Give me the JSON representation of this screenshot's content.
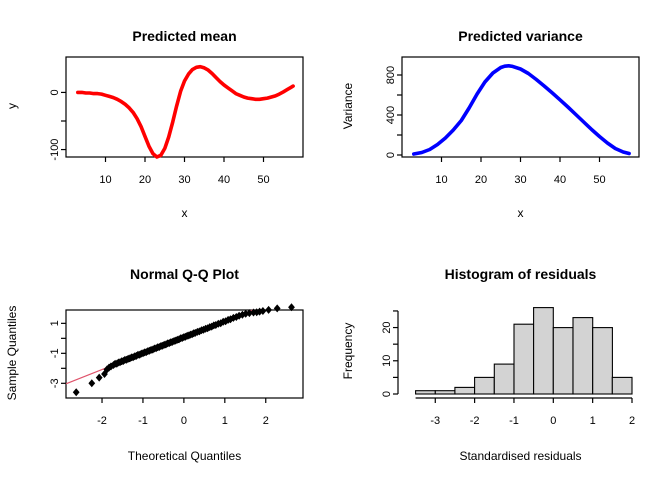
{
  "figure": {
    "background": "#ffffff",
    "text_color": "#000000",
    "axis_color": "#000000"
  },
  "chart_data": [
    {
      "type": "line",
      "name": "mean-curve",
      "title": "Predicted mean",
      "xlabel": "x",
      "ylabel": "y",
      "color": "#ff0000",
      "xlim": [
        0,
        60
      ],
      "ylim": [
        -113,
        62
      ],
      "grid": false,
      "xticks": [
        {
          "v": 10,
          "label": "10"
        },
        {
          "v": 20,
          "label": "20"
        },
        {
          "v": 30,
          "label": "30"
        },
        {
          "v": 40,
          "label": "40"
        },
        {
          "v": 50,
          "label": "50"
        }
      ],
      "yticks": [
        {
          "v": 0,
          "label": "0"
        },
        {
          "v": -50,
          "label": ""
        },
        {
          "v": -100,
          "label": "-100"
        }
      ],
      "x": [
        3,
        4,
        5,
        6,
        7,
        8,
        9,
        10,
        11,
        12,
        13,
        14,
        15,
        16,
        17,
        18,
        19,
        20,
        21,
        22,
        23,
        24,
        25,
        26,
        27,
        28,
        29,
        30,
        31,
        32,
        33,
        34,
        35,
        36,
        37,
        38,
        39,
        40,
        41,
        42,
        43,
        44,
        45,
        46,
        47,
        48,
        49,
        50,
        51,
        52,
        53,
        54,
        55,
        56,
        57,
        57.5
      ],
      "y": [
        0,
        0,
        -1,
        -1,
        -2,
        -2,
        -3,
        -5,
        -7,
        -9,
        -12,
        -16,
        -21,
        -27,
        -35,
        -46,
        -60,
        -77,
        -94,
        -107,
        -113,
        -110,
        -98,
        -78,
        -52,
        -24,
        2,
        20,
        32,
        40,
        44,
        45,
        43,
        39,
        33,
        26,
        19,
        13,
        8,
        3,
        -2,
        -5,
        -8,
        -10,
        -11,
        -12,
        -12,
        -11,
        -10,
        -8,
        -6,
        -3,
        1,
        5,
        9,
        11
      ]
    },
    {
      "type": "line",
      "name": "variance-curve",
      "title": "Predicted variance",
      "xlabel": "x",
      "ylabel": "Variance",
      "color": "#0000ff",
      "xlim": [
        0,
        60
      ],
      "ylim": [
        -20,
        980
      ],
      "grid": false,
      "xticks": [
        {
          "v": 10,
          "label": "10"
        },
        {
          "v": 20,
          "label": "20"
        },
        {
          "v": 30,
          "label": "30"
        },
        {
          "v": 40,
          "label": "40"
        },
        {
          "v": 50,
          "label": "50"
        }
      ],
      "yticks": [
        {
          "v": 0,
          "label": "0"
        },
        {
          "v": 200,
          "label": ""
        },
        {
          "v": 400,
          "label": "400"
        },
        {
          "v": 600,
          "label": ""
        },
        {
          "v": 800,
          "label": "800"
        }
      ],
      "x": [
        3,
        5,
        7,
        9,
        11,
        13,
        15,
        17,
        19,
        21,
        23,
        25,
        26,
        27,
        28,
        30,
        32,
        34,
        36,
        38,
        40,
        42,
        44,
        46,
        48,
        50,
        52,
        54,
        56,
        57.5
      ],
      "y": [
        10,
        25,
        55,
        105,
        170,
        250,
        345,
        470,
        610,
        730,
        820,
        875,
        888,
        892,
        886,
        860,
        815,
        755,
        690,
        622,
        552,
        480,
        405,
        330,
        255,
        185,
        120,
        65,
        30,
        15
      ]
    },
    {
      "type": "scatter",
      "name": "qq-points",
      "title": "Normal Q-Q Plot",
      "xlabel": "Theoretical Quantiles",
      "ylabel": "Sample Quantiles",
      "point_color": "#000000",
      "point_shape": "diamond",
      "ref_line": {
        "intercept": 0.08,
        "slope": 1.08,
        "color": "#df536b"
      },
      "xlim": [
        -2.88,
        2.91
      ],
      "ylim": [
        -3.98,
        1.89
      ],
      "grid": false,
      "xticks": [
        {
          "v": -2,
          "label": "-2"
        },
        {
          "v": -1,
          "label": "-1"
        },
        {
          "v": 0,
          "label": "0"
        },
        {
          "v": 1,
          "label": "1"
        },
        {
          "v": 2,
          "label": "2"
        }
      ],
      "yticks": [
        {
          "v": 1,
          "label": "1"
        },
        {
          "v": 0,
          "label": ""
        },
        {
          "v": -1,
          "label": "-1"
        },
        {
          "v": -2,
          "label": ""
        },
        {
          "v": -3,
          "label": "-3"
        }
      ],
      "points": [
        [
          -2.63,
          -3.6
        ],
        [
          -2.25,
          -3.0
        ],
        [
          -2.07,
          -2.62
        ],
        [
          -1.94,
          -2.38
        ],
        [
          -1.88,
          -2.08
        ],
        [
          -1.83,
          -1.95
        ],
        [
          -1.78,
          -1.87
        ],
        [
          -1.72,
          -1.78
        ],
        [
          -1.68,
          -1.7
        ],
        [
          -1.64,
          -1.69
        ],
        [
          -1.6,
          -1.61
        ],
        [
          -1.56,
          -1.6
        ],
        [
          -1.52,
          -1.53
        ],
        [
          -1.48,
          -1.51
        ],
        [
          -1.44,
          -1.44
        ],
        [
          -1.4,
          -1.43
        ],
        [
          -1.36,
          -1.36
        ],
        [
          -1.32,
          -1.34
        ],
        [
          -1.28,
          -1.27
        ],
        [
          -1.24,
          -1.26
        ],
        [
          -1.2,
          -1.19
        ],
        [
          -1.16,
          -1.17
        ],
        [
          -1.12,
          -1.1
        ],
        [
          -1.08,
          -1.09
        ],
        [
          -1.04,
          -1.02
        ],
        [
          -1.0,
          -1.0
        ],
        [
          -0.96,
          -0.94
        ],
        [
          -0.92,
          -0.92
        ],
        [
          -0.88,
          -0.85
        ],
        [
          -0.84,
          -0.83
        ],
        [
          -0.8,
          -0.77
        ],
        [
          -0.76,
          -0.75
        ],
        [
          -0.72,
          -0.68
        ],
        [
          -0.68,
          -0.66
        ],
        [
          -0.64,
          -0.6
        ],
        [
          -0.6,
          -0.58
        ],
        [
          -0.56,
          -0.51
        ],
        [
          -0.52,
          -0.49
        ],
        [
          -0.48,
          -0.43
        ],
        [
          -0.44,
          -0.41
        ],
        [
          -0.4,
          -0.34
        ],
        [
          -0.36,
          -0.32
        ],
        [
          -0.32,
          -0.26
        ],
        [
          -0.28,
          -0.24
        ],
        [
          -0.24,
          -0.18
        ],
        [
          -0.2,
          -0.15
        ],
        [
          -0.16,
          -0.09
        ],
        [
          -0.12,
          -0.07
        ],
        [
          -0.08,
          0.0
        ],
        [
          -0.04,
          0.02
        ],
        [
          0.0,
          0.08
        ],
        [
          0.04,
          0.1
        ],
        [
          0.08,
          0.17
        ],
        [
          0.12,
          0.19
        ],
        [
          0.16,
          0.25
        ],
        [
          0.2,
          0.27
        ],
        [
          0.24,
          0.34
        ],
        [
          0.28,
          0.36
        ],
        [
          0.33,
          0.43
        ],
        [
          0.38,
          0.46
        ],
        [
          0.43,
          0.54
        ],
        [
          0.48,
          0.57
        ],
        [
          0.53,
          0.64
        ],
        [
          0.58,
          0.67
        ],
        [
          0.63,
          0.75
        ],
        [
          0.68,
          0.78
        ],
        [
          0.73,
          0.86
        ],
        [
          0.78,
          0.89
        ],
        [
          0.84,
          0.97
        ],
        [
          0.9,
          1.01
        ],
        [
          0.96,
          1.1
        ],
        [
          1.02,
          1.14
        ],
        [
          1.08,
          1.23
        ],
        [
          1.14,
          1.27
        ],
        [
          1.21,
          1.36
        ],
        [
          1.28,
          1.42
        ],
        [
          1.35,
          1.5
        ],
        [
          1.43,
          1.57
        ],
        [
          1.51,
          1.64
        ],
        [
          1.6,
          1.68
        ],
        [
          1.7,
          1.72
        ],
        [
          1.78,
          1.74
        ],
        [
          1.85,
          1.78
        ],
        [
          1.93,
          1.82
        ],
        [
          2.07,
          1.9
        ],
        [
          2.28,
          2.0
        ],
        [
          2.63,
          2.08
        ]
      ]
    },
    {
      "type": "bar",
      "name": "residual-histogram",
      "title": "Histogram of residuals",
      "xlabel": "Standardised residuals",
      "ylabel": "Frequency",
      "fill": "#d3d3d3",
      "stroke": "#000000",
      "bin_start": -3.5,
      "bin_width": 0.5,
      "counts": [
        1,
        1,
        2,
        5,
        9,
        21,
        26,
        20,
        23,
        20,
        5
      ],
      "xlim": [
        -3.5,
        2
      ],
      "ylim": [
        0,
        29.2
      ],
      "grid": false,
      "xticks": [
        {
          "v": -3,
          "label": "-3"
        },
        {
          "v": -2,
          "label": "-2"
        },
        {
          "v": -1,
          "label": "-1"
        },
        {
          "v": 0,
          "label": "0"
        },
        {
          "v": 1,
          "label": "1"
        },
        {
          "v": 2,
          "label": "2"
        }
      ],
      "yticks": [
        {
          "v": 0,
          "label": "0"
        },
        {
          "v": 5,
          "label": ""
        },
        {
          "v": 10,
          "label": "10"
        },
        {
          "v": 15,
          "label": ""
        },
        {
          "v": 20,
          "label": "20"
        },
        {
          "v": 25,
          "label": ""
        }
      ]
    }
  ]
}
